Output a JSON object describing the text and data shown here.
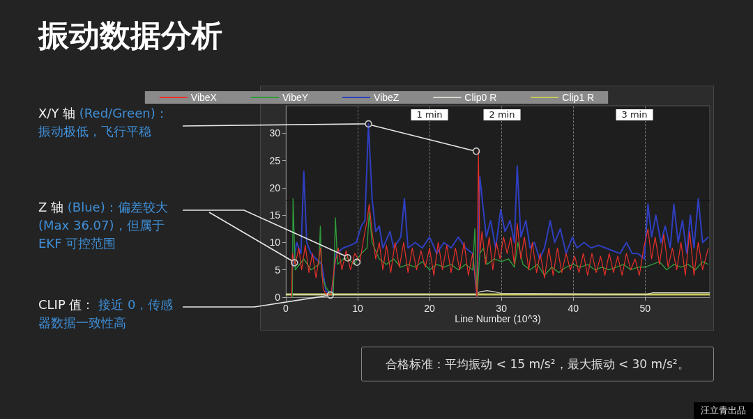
{
  "chart_data": {
    "type": "line",
    "title": "振动数据分析",
    "xlabel": "Line Number (10^3)",
    "xlim": [
      0,
      59
    ],
    "xticks": [
      0,
      10,
      20,
      30,
      40,
      50
    ],
    "ylim": [
      0,
      35
    ],
    "yticks": [
      0,
      5,
      10,
      15,
      20,
      25,
      30
    ],
    "grid": "x",
    "legend": "top",
    "marker": "none",
    "line_style": "solid",
    "ref_lines": [
      {
        "axis": "y",
        "value": 17.6,
        "color": "#111111"
      }
    ],
    "annotations": [
      "X/Y 轴",
      {
        "text": "(Red/Green)：振动极低，飞行平稳",
        "x": 11.5,
        "y": 31.7
      },
      "Z 轴",
      {
        "text": "(Blue)：偏差较大 (Max 36.07)，但属于 EKF 可控范围",
        "x": 8.6,
        "y": 7.2
      },
      "CLIP 值：",
      {
        "text": "接近 0，传感器数据一致性高",
        "x": 6.2,
        "y": 0.4
      },
      "1 min",
      "2 min",
      "3 min",
      "合格标准：平均振动 < 15 m/s²，最大振动 < 30 m/s²。",
      "汪立青出品"
    ],
    "series": [
      {
        "name": "VibeX",
        "color": "#e8302a",
        "x": [
          0.8,
          0.9,
          1.3,
          1.8,
          2.2,
          2.7,
          3.2,
          3.7,
          4.2,
          4.8,
          5.2,
          5.6,
          6.3,
          6.8,
          7.3,
          7.8,
          8.4,
          9,
          9.6,
          10.3,
          10.8,
          11.3,
          11.6,
          12,
          12.5,
          13,
          13.5,
          14,
          14.6,
          15.2,
          15.8,
          16.4,
          17,
          17.6,
          18.2,
          18.8,
          19.4,
          20,
          20.6,
          21.2,
          21.8,
          22.4,
          23,
          23.6,
          24.2,
          24.8,
          25.4,
          26,
          26.6,
          26.8,
          27,
          27.3,
          27.8,
          28.3,
          28.8,
          29.3,
          29.8,
          30.3,
          30.8,
          31.3,
          31.8,
          32.2,
          32.7,
          33.2,
          33.8,
          34.3,
          34.9,
          35.4,
          36,
          36.6,
          37.2,
          37.8,
          38.4,
          39,
          39.6,
          40.2,
          40.8,
          41.4,
          42,
          42.6,
          43.2,
          43.8,
          44.4,
          45,
          45.6,
          46.2,
          46.8,
          47.4,
          48,
          48.6,
          49.2,
          49.8,
          50.4,
          50.9,
          51.4,
          52,
          52.6,
          53.2,
          53.8,
          54.4,
          55,
          55.6,
          56.2,
          56.8,
          57.4,
          58,
          58.8
        ],
        "values": [
          0,
          8,
          6,
          9,
          5,
          9.5,
          4.5,
          8,
          3.5,
          9,
          1.5,
          0.5,
          0.5,
          6,
          9,
          5,
          8.5,
          5,
          8,
          6.5,
          10.5,
          14,
          17,
          12,
          7,
          10,
          5,
          9.5,
          4.5,
          10,
          5.5,
          10,
          4.5,
          9,
          5,
          8.5,
          5.5,
          9,
          4,
          10,
          5,
          9.5,
          4.5,
          9,
          5,
          10,
          4,
          8,
          0,
          26.7,
          8,
          12,
          6,
          11,
          5,
          10,
          7,
          11,
          8,
          11,
          6,
          13.5,
          7,
          11,
          5,
          10,
          4.5,
          8,
          3.5,
          9,
          4,
          9,
          4.5,
          8,
          5,
          7.5,
          4.5,
          8,
          4,
          8,
          4.5,
          7.5,
          4,
          8,
          4.5,
          7.5,
          4,
          8,
          5,
          7,
          4,
          9,
          12.5,
          7,
          11,
          6,
          11.5,
          5.5,
          9,
          5,
          10,
          4,
          12,
          4,
          10,
          5,
          9
        ]
      },
      {
        "name": "VibeY",
        "color": "#2e9a3a",
        "x": [
          0.9,
          1,
          1.3,
          2.5,
          3.5,
          4.6,
          4.8,
          5,
          5.5,
          6,
          6.6,
          6.9,
          7.2,
          8,
          8.6,
          9.5,
          10.5,
          11.3,
          11.6,
          12,
          13,
          14,
          15,
          16,
          17,
          18,
          19,
          20,
          21,
          22,
          23,
          24,
          25,
          26,
          26.3,
          26.6,
          27,
          27.5,
          28,
          29,
          30,
          31,
          31.8,
          32.3,
          33,
          34,
          35,
          36,
          37,
          38,
          39,
          40,
          41,
          42,
          43,
          44,
          45,
          46,
          47,
          48,
          49,
          50,
          51,
          52,
          53,
          54,
          55,
          56,
          57,
          58,
          58.8
        ],
        "values": [
          0,
          18,
          5,
          7,
          5,
          6,
          13,
          4,
          2,
          1,
          0.5,
          14.5,
          6,
          7,
          7.2,
          6,
          8,
          9,
          15.5,
          10,
          7,
          6,
          7,
          5.5,
          6,
          5.5,
          6.5,
          5,
          6,
          5.5,
          6,
          5,
          6,
          5,
          12.5,
          0,
          8,
          9,
          6,
          7,
          6.5,
          7,
          5.5,
          10,
          6,
          5,
          6,
          4,
          5.5,
          4.5,
          5.5,
          6,
          5.5,
          6,
          5,
          5.5,
          5,
          5.5,
          6,
          5,
          5.5,
          5.5,
          6,
          6.5,
          5,
          6,
          5.5,
          6,
          5,
          6.5,
          6
        ]
      },
      {
        "name": "VibeZ",
        "color": "#2f3fc0",
        "x": [
          0.9,
          1.5,
          2.1,
          2.5,
          2.9,
          3.5,
          4.2,
          5,
          5.6,
          6.4,
          7,
          8,
          9,
          9.8,
          10.5,
          11,
          11.5,
          12,
          12.5,
          13,
          13.5,
          14.5,
          15,
          16,
          16.5,
          17,
          18,
          19,
          20,
          21,
          22,
          23,
          24,
          25,
          26,
          26.6,
          27,
          27.4,
          27.9,
          28.5,
          29.2,
          29.9,
          30.5,
          31.2,
          31.8,
          32.2,
          32.7,
          33.4,
          34,
          34.6,
          35.3,
          36,
          36.8,
          37.4,
          38.2,
          39,
          39.9,
          40.5,
          41.5,
          42.5,
          43.5,
          44.5,
          45.5,
          46.5,
          47.4,
          48.2,
          49,
          49.9,
          50.4,
          50.9,
          51.5,
          52.2,
          52.8,
          53.5,
          54,
          54.6,
          55.2,
          55.8,
          56.3,
          56.8,
          57.4,
          58,
          58.8
        ],
        "values": [
          5,
          10,
          8,
          23,
          10,
          8,
          7,
          6,
          1,
          1,
          8,
          9,
          9.5,
          10,
          13,
          14,
          31.7,
          18,
          12,
          13,
          9,
          12,
          9,
          11,
          18,
          9,
          10,
          9,
          11,
          8,
          10,
          9,
          11,
          9,
          8,
          0,
          22,
          17,
          11,
          14,
          9,
          16,
          12,
          14,
          10,
          24,
          11,
          14,
          9,
          10,
          7,
          9,
          14,
          10,
          12.5,
          8,
          11,
          9,
          10,
          9,
          9.5,
          9,
          8.5,
          8,
          10,
          8,
          8,
          7,
          17,
          11,
          15,
          10,
          13,
          9,
          17,
          10,
          14,
          8,
          15,
          9,
          18,
          10,
          11
        ]
      },
      {
        "name": "Clip0 R",
        "color": "#d8d8d0",
        "x": [
          0,
          26.5,
          27,
          28,
          29,
          30,
          50,
          51,
          59
        ],
        "values": [
          0.5,
          0.5,
          1,
          1.2,
          1,
          0.7,
          0.5,
          0.8,
          0.8
        ]
      },
      {
        "name": "Clip1 R",
        "color": "#c8c85a",
        "x": [
          0,
          59
        ],
        "values": [
          0.5,
          0.5
        ]
      },
      {
        "type": "scatter",
        "marker": "circle",
        "color": "#f4f4f4",
        "x": [
          11.5,
          26.5,
          1.2,
          8.6,
          9.9,
          6.2
        ],
        "values": [
          31.7,
          26.7,
          6.3,
          7.2,
          6.4,
          0.4
        ]
      }
    ]
  }
}
